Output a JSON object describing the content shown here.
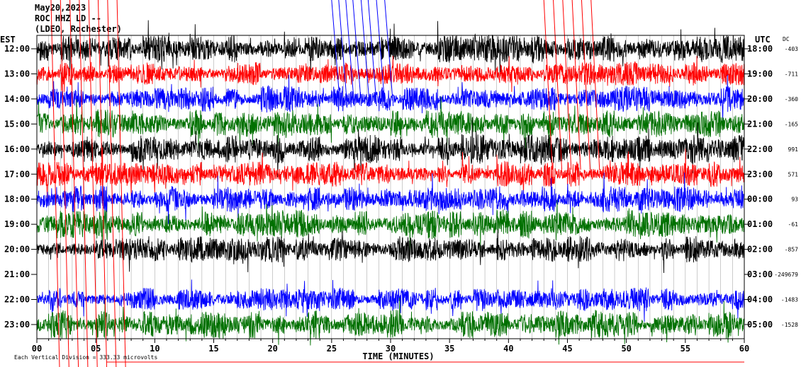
{
  "header": {
    "date": "May20,2023",
    "station": "ROC HHZ LD --",
    "network": "(LDEO, Rochester)"
  },
  "chart_data": {
    "type": "line",
    "title": "ROC HHZ LD -- May20,2023",
    "left_axis_label": "EST",
    "right_axis_label": "UTC",
    "dc_label": "DC",
    "xlabel": "TIME (MINUTES)",
    "x_ticks": [
      "00",
      "05",
      "10",
      "15",
      "20",
      "25",
      "30",
      "35",
      "40",
      "45",
      "50",
      "55",
      "60"
    ],
    "xlim": [
      0,
      60
    ],
    "scale_note": "Each Vertical Division = 333.33 microvolts",
    "trace_colors": [
      "#000000",
      "#ff0000",
      "#0000ff",
      "#007000"
    ],
    "rows": [
      {
        "est": "12:00",
        "utc": "18:00",
        "dc": "-403",
        "color": "#000000",
        "amp": 1.2
      },
      {
        "est": "13:00",
        "utc": "19:00",
        "dc": "-711",
        "color": "#ff0000",
        "amp": 1.0
      },
      {
        "est": "14:00",
        "utc": "20:00",
        "dc": "-360",
        "color": "#0000ff",
        "amp": 1.1
      },
      {
        "est": "15:00",
        "utc": "21:00",
        "dc": "-165",
        "color": "#007000",
        "amp": 1.2
      },
      {
        "est": "16:00",
        "utc": "22:00",
        "dc": "991",
        "color": "#000000",
        "amp": 1.2
      },
      {
        "est": "17:00",
        "utc": "23:00",
        "dc": "571",
        "color": "#ff0000",
        "amp": 1.1
      },
      {
        "est": "18:00",
        "utc": "00:00",
        "dc": "93",
        "color": "#0000ff",
        "amp": 1.1
      },
      {
        "est": "19:00",
        "utc": "01:00",
        "dc": "-61",
        "color": "#007000",
        "amp": 1.2
      },
      {
        "est": "20:00",
        "utc": "02:00",
        "dc": "-857",
        "color": "#000000",
        "amp": 1.1
      },
      {
        "est": "21:00",
        "utc": "03:00",
        "dc": "-249679",
        "color": "#ff0000",
        "amp": 0
      },
      {
        "est": "22:00",
        "utc": "04:00",
        "dc": "-1483",
        "color": "#0000ff",
        "amp": 1.0
      },
      {
        "est": "23:00",
        "utc": "05:00",
        "dc": "-1528",
        "color": "#007000",
        "amp": 1.2
      }
    ]
  }
}
